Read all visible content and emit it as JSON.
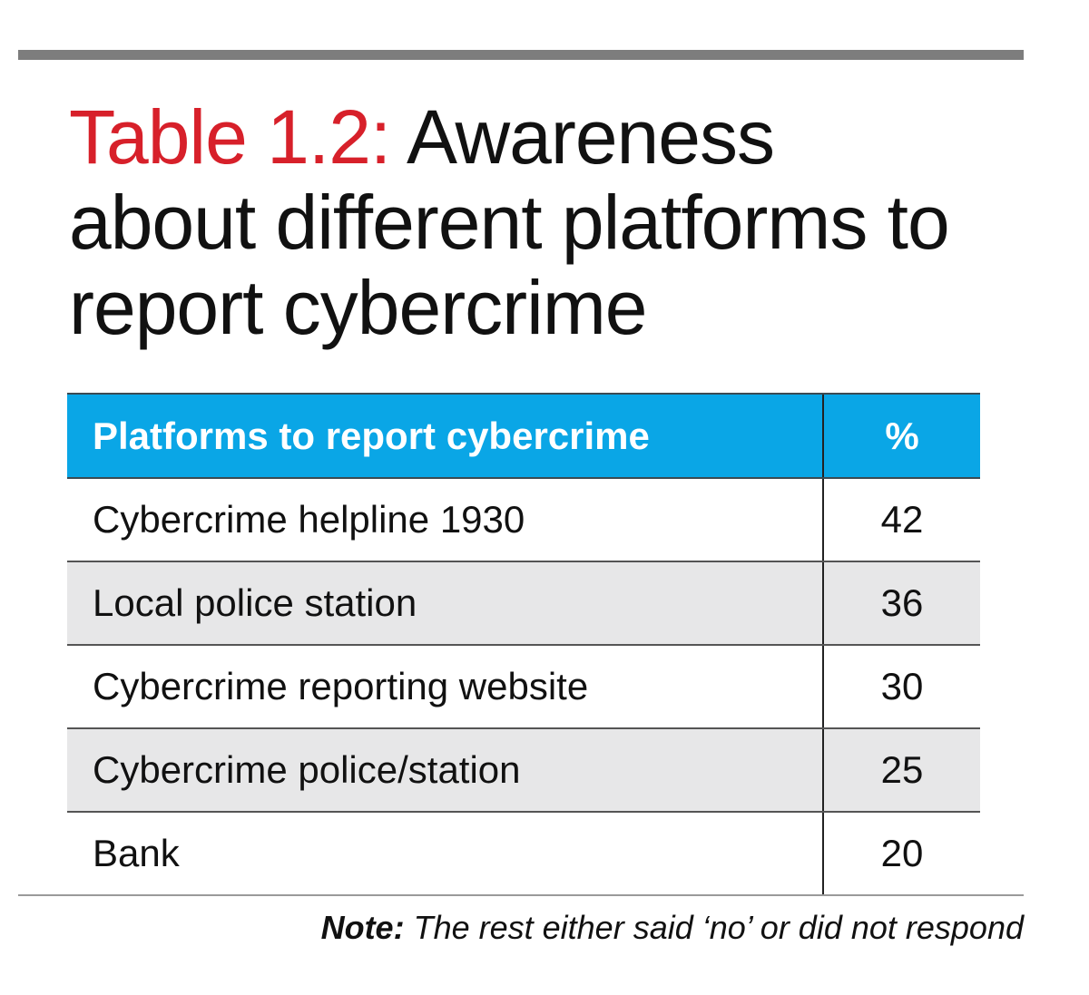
{
  "title": {
    "label": "Table 1.2:",
    "text": "Awareness about different platforms to report cybercrime"
  },
  "colors": {
    "title_label": "#d7202a",
    "header_bg": "#0aa6e6",
    "alt_row": "#e7e7e8",
    "rule": "#7d7d7d"
  },
  "chart_data": {
    "type": "table",
    "columns": [
      "Platforms to report cybercrime",
      "%"
    ],
    "rows": [
      {
        "platform": "Cybercrime helpline 1930",
        "value": "42"
      },
      {
        "platform": "Local police station",
        "value": "36"
      },
      {
        "platform": "Cybercrime reporting website",
        "value": "30"
      },
      {
        "platform": "Cybercrime police/station",
        "value": "25"
      },
      {
        "platform": "Bank",
        "value": "20"
      }
    ]
  },
  "note": {
    "label": "Note:",
    "text": "The rest either said ‘no’ or did not respond"
  }
}
